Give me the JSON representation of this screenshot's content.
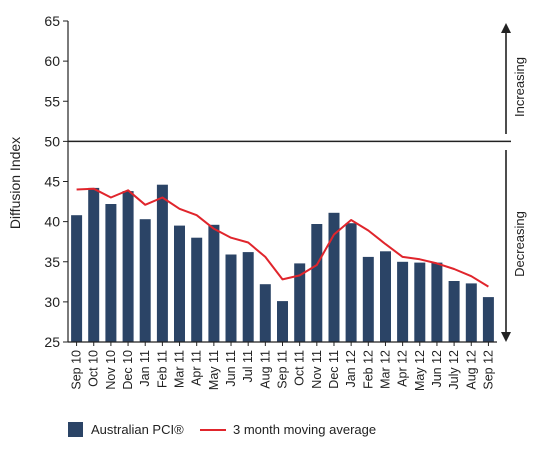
{
  "chart_data": {
    "type": "bar",
    "ylabel": "Diffusion Index",
    "ylim": [
      25,
      65
    ],
    "yticks": [
      25,
      30,
      35,
      40,
      45,
      50,
      55,
      60,
      65
    ],
    "reference_line": 50,
    "categories": [
      "Sep 10",
      "Oct 10",
      "Nov 10",
      "Dec 10",
      "Jan 11",
      "Feb 11",
      "Mar 11",
      "Apr 11",
      "May 11",
      "Jun 11",
      "Jul 11",
      "Aug 11",
      "Sep 11",
      "Oct 11",
      "Nov 11",
      "Dec 11",
      "Jan 12",
      "Feb 12",
      "Mar 12",
      "Apr 12",
      "May 12",
      "Jun 12",
      "July 12",
      "Aug 12",
      "Sep 12"
    ],
    "series": [
      {
        "name": "Australian PCI®",
        "type": "bar",
        "color": "#2b4466",
        "values": [
          40.8,
          44.2,
          42.2,
          43.8,
          40.3,
          44.6,
          39.5,
          38.0,
          39.6,
          35.9,
          36.2,
          32.2,
          30.1,
          34.8,
          39.7,
          41.1,
          39.8,
          35.6,
          36.3,
          35.0,
          34.9,
          34.9,
          32.6,
          32.3,
          30.6
        ]
      },
      {
        "name": "3 month moving average",
        "type": "line",
        "color": "#e0252c",
        "values": [
          44.0,
          44.1,
          43.0,
          43.9,
          42.1,
          43.0,
          41.6,
          40.8,
          39.1,
          38.0,
          37.4,
          35.6,
          32.8,
          33.3,
          34.6,
          38.4,
          40.2,
          38.9,
          37.2,
          35.6,
          35.3,
          34.8,
          34.1,
          33.2,
          31.9
        ]
      }
    ],
    "annotations": {
      "increasing": "Increasing",
      "decreasing": "Decreasing"
    },
    "legend_position": "bottom-left",
    "grid": false
  }
}
